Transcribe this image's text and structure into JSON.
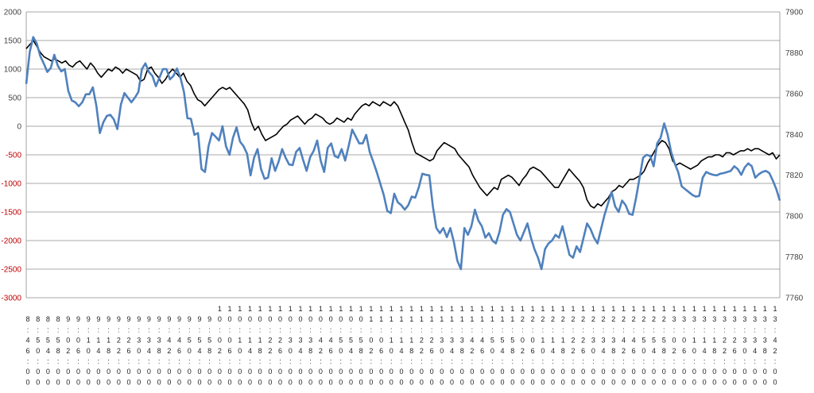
{
  "chart_data": {
    "type": "line",
    "title": "",
    "xlabel": "",
    "ylabel": "",
    "y_left": {
      "range": [
        -3000,
        2000
      ],
      "ticks": [
        "2000",
        "1500",
        "1000",
        "500",
        "0",
        "-500",
        "-1000",
        "-1500",
        "-2000",
        "-2500",
        "-3000"
      ],
      "negative_color": "#c00000"
    },
    "y_right": {
      "range": [
        7760,
        7900
      ],
      "ticks": [
        "7900",
        "7880",
        "7860",
        "7840",
        "7820",
        "7800",
        "7780",
        "7760"
      ]
    },
    "grid": true,
    "legend": "none",
    "x_labels": [
      "8:46:00",
      "8:50:00",
      "8:54:00",
      "8:58:00",
      "9:02:00",
      "9:06:00",
      "9:10:00",
      "9:14:00",
      "9:18:00",
      "9:22:00",
      "9:26:00",
      "9:30:00",
      "9:34:00",
      "9:38:00",
      "9:42:00",
      "9:46:00",
      "9:50:00",
      "9:54:00",
      "9:58:00",
      "10:02:00",
      "10:06:00",
      "10:10:00",
      "10:14:00",
      "10:18:00",
      "10:22:00",
      "10:26:00",
      "10:30:00",
      "10:34:00",
      "10:38:00",
      "10:42:00",
      "10:46:00",
      "10:50:00",
      "10:54:00",
      "10:58:00",
      "11:02:00",
      "11:06:00",
      "11:10:00",
      "11:14:00",
      "11:18:00",
      "11:22:00",
      "11:26:00",
      "11:30:00",
      "11:34:00",
      "11:38:00",
      "11:42:00",
      "11:46:00",
      "11:50:00",
      "11:54:00",
      "11:58:00",
      "12:02:00",
      "12:06:00",
      "12:10:00",
      "12:14:00",
      "12:18:00",
      "12:22:00",
      "12:26:00",
      "12:30:00",
      "12:34:00",
      "12:38:00",
      "12:42:00",
      "12:46:00",
      "12:50:00",
      "12:54:00",
      "12:58:00",
      "13:02:00",
      "13:06:00",
      "13:10:00",
      "13:14:00",
      "13:18:00",
      "13:22:00",
      "13:26:00",
      "13:30:00",
      "13:34:00",
      "13:38:00",
      "13:42:00"
    ],
    "series": [
      {
        "axis": "left",
        "color": "#4f81bd",
        "values": [
          740,
          1300,
          1560,
          1450,
          1230,
          1100,
          950,
          1020,
          1250,
          1060,
          960,
          1000,
          620,
          450,
          420,
          350,
          420,
          560,
          560,
          680,
          360,
          -120,
          70,
          180,
          200,
          120,
          -50,
          380,
          580,
          500,
          420,
          500,
          600,
          1000,
          1100,
          950,
          880,
          700,
          850,
          1000,
          1000,
          820,
          880,
          1010,
          850,
          600,
          140,
          130,
          -150,
          -120,
          -750,
          -800,
          -350,
          -120,
          -180,
          -250,
          0,
          -350,
          -500,
          -200,
          -20,
          -270,
          -350,
          -480,
          -860,
          -550,
          -400,
          -750,
          -920,
          -900,
          -560,
          -780,
          -620,
          -400,
          -550,
          -670,
          -680,
          -450,
          -380,
          -590,
          -780,
          -540,
          -430,
          -250,
          -600,
          -800,
          -380,
          -300,
          -520,
          -550,
          -400,
          -600,
          -340,
          -60,
          -180,
          -300,
          -300,
          -150,
          -450,
          -620,
          -800,
          -1000,
          -1200,
          -1480,
          -1520,
          -1180,
          -1330,
          -1380,
          -1460,
          -1380,
          -1230,
          -1250,
          -1070,
          -830,
          -850,
          -860,
          -1400,
          -1780,
          -1870,
          -1780,
          -1940,
          -1780,
          -2020,
          -2350,
          -2500,
          -1780,
          -1900,
          -1750,
          -1460,
          -1650,
          -1750,
          -1950,
          -1870,
          -2000,
          -2050,
          -1850,
          -1550,
          -1450,
          -1500,
          -1700,
          -1900,
          -2000,
          -1850,
          -1700,
          -1950,
          -2150,
          -2300,
          -2500,
          -2150,
          -2050,
          -2000,
          -1900,
          -1950,
          -1750,
          -2000,
          -2250,
          -2300,
          -2100,
          -2200,
          -1950,
          -1700,
          -1800,
          -1950,
          -2050,
          -1800,
          -1550,
          -1350,
          -1150,
          -1400,
          -1500,
          -1300,
          -1380,
          -1530,
          -1550,
          -1250,
          -900,
          -550,
          -500,
          -520,
          -700,
          -300,
          -200,
          50,
          -150,
          -450,
          -650,
          -800,
          -1050,
          -1100,
          -1150,
          -1200,
          -1230,
          -1220,
          -900,
          -800,
          -830,
          -850,
          -860,
          -830,
          -820,
          -800,
          -780,
          -700,
          -750,
          -850,
          -720,
          -650,
          -700,
          -900,
          -840,
          -800,
          -780,
          -820,
          -950,
          -1100,
          -1300
        ]
      },
      {
        "axis": "right",
        "color": "#000000",
        "values": [
          7882,
          7884,
          7886,
          7883,
          7880,
          7878,
          7877,
          7876,
          7877,
          7876,
          7875,
          7876,
          7874,
          7873,
          7875,
          7876,
          7874,
          7872,
          7875,
          7873,
          7870,
          7868,
          7870,
          7872,
          7871,
          7873,
          7872,
          7870,
          7872,
          7871,
          7870,
          7869,
          7866,
          7867,
          7872,
          7873,
          7870,
          7868,
          7865,
          7867,
          7870,
          7872,
          7870,
          7868,
          7870,
          7866,
          7864,
          7860,
          7857,
          7856,
          7854,
          7856,
          7858,
          7860,
          7862,
          7863,
          7862,
          7863,
          7861,
          7859,
          7857,
          7855,
          7852,
          7846,
          7842,
          7844,
          7840,
          7837,
          7838,
          7839,
          7840,
          7842,
          7844,
          7845,
          7847,
          7848,
          7849,
          7847,
          7845,
          7847,
          7848,
          7850,
          7849,
          7848,
          7846,
          7845,
          7846,
          7848,
          7847,
          7846,
          7848,
          7847,
          7850,
          7852,
          7854,
          7855,
          7854,
          7856,
          7855,
          7854,
          7856,
          7855,
          7854,
          7856,
          7854,
          7850,
          7846,
          7842,
          7836,
          7831,
          7830,
          7829,
          7828,
          7827,
          7828,
          7832,
          7834,
          7836,
          7835,
          7834,
          7833,
          7830,
          7828,
          7826,
          7824,
          7820,
          7817,
          7814,
          7812,
          7810,
          7812,
          7814,
          7813,
          7818,
          7819,
          7820,
          7819,
          7817,
          7815,
          7818,
          7820,
          7823,
          7824,
          7823,
          7822,
          7820,
          7818,
          7816,
          7814,
          7814,
          7817,
          7820,
          7823,
          7821,
          7819,
          7817,
          7814,
          7808,
          7805,
          7804,
          7806,
          7805,
          7807,
          7809,
          7812,
          7813,
          7815,
          7814,
          7816,
          7818,
          7818,
          7819,
          7820,
          7822,
          7826,
          7829,
          7832,
          7835,
          7837,
          7836,
          7833,
          7827,
          7825,
          7826,
          7825,
          7824,
          7823,
          7824,
          7825,
          7827,
          7828,
          7829,
          7829,
          7830,
          7830,
          7829,
          7831,
          7831,
          7830,
          7831,
          7832,
          7832,
          7833,
          7832,
          7833,
          7833,
          7832,
          7831,
          7830,
          7831,
          7828,
          7830
        ]
      }
    ]
  }
}
